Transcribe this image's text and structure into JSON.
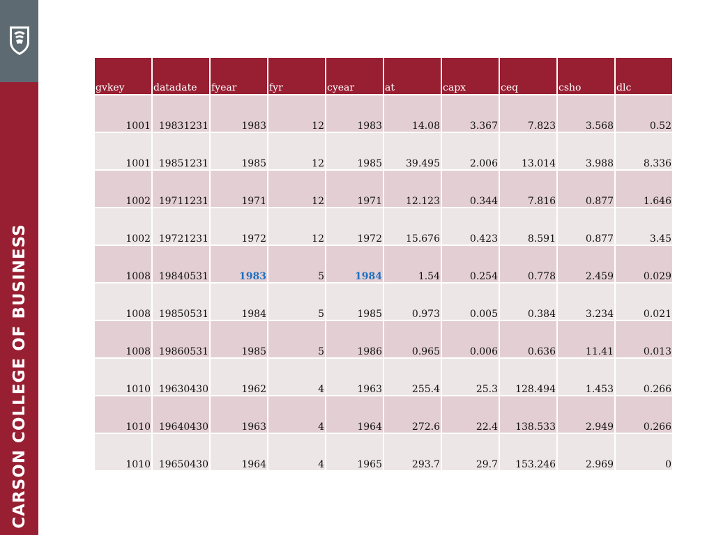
{
  "sidebar": {
    "college_name": "CARSON COLLEGE OF BUSINESS",
    "logo_icon": "wsu-cougar-shield-icon",
    "colors": {
      "crimson": "#981e32",
      "gray": "#5e6a71"
    }
  },
  "table": {
    "columns": [
      "gvkey",
      "datadate",
      "fyear",
      "fyr",
      "cyear",
      "at",
      "capx",
      "ceq",
      "csho",
      "dlc"
    ],
    "rows": [
      [
        "1001",
        "19831231",
        "1983",
        "12",
        "1983",
        "14.08",
        "3.367",
        "7.823",
        "3.568",
        "0.52"
      ],
      [
        "1001",
        "19851231",
        "1985",
        "12",
        "1985",
        "39.495",
        "2.006",
        "13.014",
        "3.988",
        "8.336"
      ],
      [
        "1002",
        "19711231",
        "1971",
        "12",
        "1971",
        "12.123",
        "0.344",
        "7.816",
        "0.877",
        "1.646"
      ],
      [
        "1002",
        "19721231",
        "1972",
        "12",
        "1972",
        "15.676",
        "0.423",
        "8.591",
        "0.877",
        "3.45"
      ],
      [
        "1008",
        "19840531",
        "1983",
        "5",
        "1984",
        "1.54",
        "0.254",
        "0.778",
        "2.459",
        "0.029"
      ],
      [
        "1008",
        "19850531",
        "1984",
        "5",
        "1985",
        "0.973",
        "0.005",
        "0.384",
        "3.234",
        "0.021"
      ],
      [
        "1008",
        "19860531",
        "1985",
        "5",
        "1986",
        "0.965",
        "0.006",
        "0.636",
        "11.41",
        "0.013"
      ],
      [
        "1010",
        "19630430",
        "1962",
        "4",
        "1963",
        "255.4",
        "25.3",
        "128.494",
        "1.453",
        "0.266"
      ],
      [
        "1010",
        "19640430",
        "1963",
        "4",
        "1964",
        "272.6",
        "22.4",
        "138.533",
        "2.949",
        "0.266"
      ],
      [
        "1010",
        "19650430",
        "1964",
        "4",
        "1965",
        "293.7",
        "29.7",
        "153.246",
        "2.969",
        "0"
      ]
    ],
    "highlight_color": "#1f6fbf",
    "highlighted_cells": [
      [
        4,
        2
      ],
      [
        4,
        4
      ]
    ]
  }
}
